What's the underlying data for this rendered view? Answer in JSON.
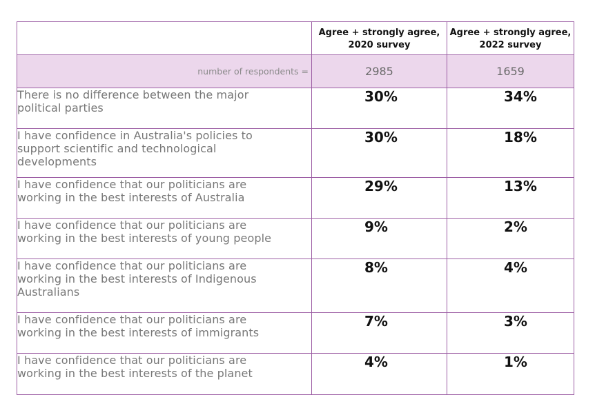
{
  "chart_data": {
    "type": "table",
    "columns": [
      "",
      "Agree + strongly agree, 2020 survey",
      "Agree + strongly agree, 2022 survey"
    ],
    "column_headers": {
      "c2020": [
        "Agree + strongly agree,",
        "2020 survey"
      ],
      "c2022": [
        "Agree + strongly agree,",
        "2022 survey"
      ]
    },
    "respondents": {
      "label": "number of respondents =",
      "v2020": "2985",
      "v2022": "1659"
    },
    "rows": [
      {
        "statement": [
          "There is no difference between the major",
          "political parties"
        ],
        "v2020": "30%",
        "v2022": "34%"
      },
      {
        "statement": [
          "I have confidence in Australia's policies to",
          "support scientific and technological",
          "developments"
        ],
        "v2020": "30%",
        "v2022": "18%"
      },
      {
        "statement": [
          "I have confidence that our politicians are",
          "working in the best interests of Australia"
        ],
        "v2020": "29%",
        "v2022": "13%"
      },
      {
        "statement": [
          "I have confidence that our politicians are",
          "working in the best interests of young people"
        ],
        "v2020": "9%",
        "v2022": "2%"
      },
      {
        "statement": [
          "I have confidence that our politicians are",
          "working in the best interests of Indigenous",
          "Australians"
        ],
        "v2020": "8%",
        "v2022": "4%"
      },
      {
        "statement": [
          "I have confidence that our politicians are",
          "working in the best interests of immigrants"
        ],
        "v2020": "7%",
        "v2022": "3%"
      },
      {
        "statement": [
          "I have confidence that our politicians are",
          "working in the best interests of the planet"
        ],
        "v2020": "4%",
        "v2022": "1%"
      }
    ],
    "values_2020": [
      30,
      30,
      29,
      9,
      8,
      7,
      4
    ],
    "values_2022": [
      34,
      18,
      13,
      2,
      4,
      3,
      1
    ]
  },
  "colors": {
    "border": "#9b5ca3",
    "highlight_row": "#ecd7ec"
  }
}
